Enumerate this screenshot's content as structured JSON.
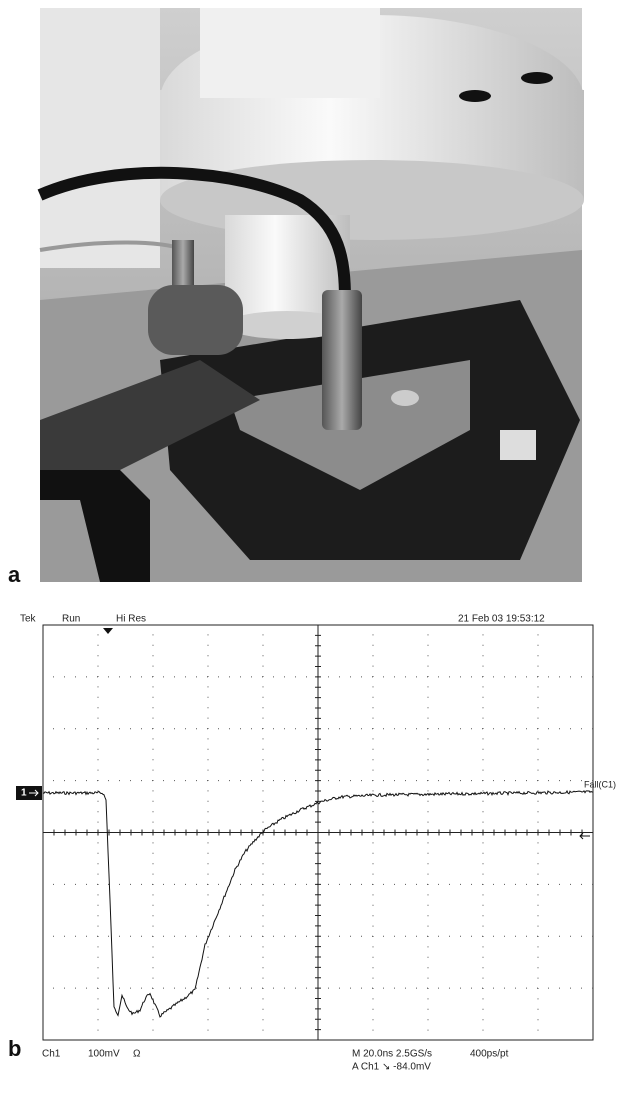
{
  "figure": {
    "panel_a": {
      "label": "a"
    },
    "panel_b": {
      "label": "b"
    },
    "scope": {
      "header": {
        "brand": "Tek",
        "state": "Run",
        "mode": "Hi Res",
        "timestamp": "21 Feb 03 19:53:12"
      },
      "channel_marker": "1",
      "trigger_label": "Fall(C1)",
      "footer": {
        "channel": "Ch1",
        "scale": "100mV",
        "coupling": "Ω",
        "timebase": "M 20.0ns 2.5GS/s",
        "resolution": "400ps/pt",
        "trigger": "A Ch1 ↘ -84.0mV"
      }
    }
  }
}
